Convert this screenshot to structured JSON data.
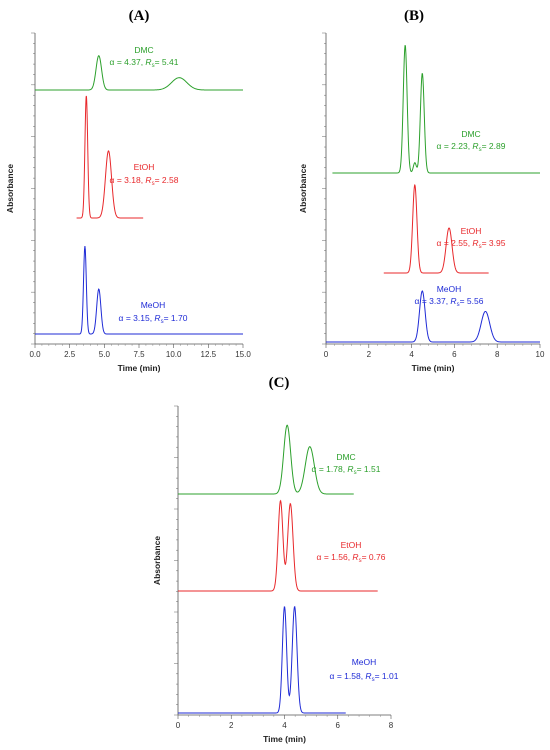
{
  "chart_data": [
    {
      "panel": "(A)",
      "type": "line",
      "xlabel": "Time (min)",
      "ylabel": "Absorbance",
      "xlim": [
        0,
        15
      ],
      "xticks": [
        "0.0",
        "2.5",
        "5.0",
        "7.5",
        "10.0",
        "12.5",
        "15.0"
      ],
      "series": [
        {
          "name": "DMC",
          "annotation": {
            "alpha": "4.37",
            "rs": "5.41"
          },
          "color": "#2ca02c",
          "x_range": [
            0,
            15
          ],
          "peaks": [
            {
              "x": 4.6,
              "height": 0.78,
              "width": 0.2
            },
            {
              "x": 10.4,
              "height": 0.28,
              "width": 0.55
            }
          ]
        },
        {
          "name": "EtOH",
          "annotation": {
            "alpha": "3.18",
            "rs": "2.58"
          },
          "color": "#e8282b",
          "x_range": [
            3.0,
            7.8
          ],
          "peaks": [
            {
              "x": 3.7,
              "height": 1.0,
              "width": 0.1
            },
            {
              "x": 5.3,
              "height": 0.55,
              "width": 0.22
            }
          ]
        },
        {
          "name": "MeOH",
          "annotation": {
            "alpha": "3.15",
            "rs": "1.70"
          },
          "color": "#1f2bd6",
          "x_range": [
            0,
            15
          ],
          "peaks": [
            {
              "x": 3.6,
              "height": 0.88,
              "width": 0.1
            },
            {
              "x": 4.6,
              "height": 0.45,
              "width": 0.15
            }
          ]
        }
      ]
    },
    {
      "panel": "(B)",
      "type": "line",
      "xlabel": "Time (min)",
      "ylabel": "Absorbance",
      "xlim": [
        0,
        10
      ],
      "xticks": [
        "0",
        "2",
        "4",
        "6",
        "8",
        "10"
      ],
      "series": [
        {
          "name": "DMC",
          "annotation": {
            "alpha": "2.23",
            "rs": "2.89"
          },
          "color": "#2ca02c",
          "x_range": [
            0.3,
            10
          ],
          "peaks": [
            {
              "x": 3.7,
              "height": 1.0,
              "width": 0.09
            },
            {
              "x": 4.15,
              "height": 0.08,
              "width": 0.07
            },
            {
              "x": 4.5,
              "height": 0.78,
              "width": 0.09
            }
          ]
        },
        {
          "name": "EtOH",
          "annotation": {
            "alpha": "2.55",
            "rs": "3.95"
          },
          "color": "#e8282b",
          "x_range": [
            2.7,
            7.6
          ],
          "peaks": [
            {
              "x": 4.15,
              "height": 0.88,
              "width": 0.1
            },
            {
              "x": 5.75,
              "height": 0.45,
              "width": 0.14
            }
          ]
        },
        {
          "name": "MeOH",
          "annotation": {
            "alpha": "3.37",
            "rs": "5.56"
          },
          "color": "#1f2bd6",
          "x_range": [
            0,
            10
          ],
          "peaks": [
            {
              "x": 4.5,
              "height": 0.75,
              "width": 0.13
            },
            {
              "x": 7.45,
              "height": 0.45,
              "width": 0.2
            }
          ]
        }
      ]
    },
    {
      "panel": "(C)",
      "type": "line",
      "xlabel": "Time (min)",
      "ylabel": "Absorbance",
      "xlim": [
        0,
        8
      ],
      "xticks": [
        "0",
        "2",
        "4",
        "6",
        "8"
      ],
      "series": [
        {
          "name": "DMC",
          "annotation": {
            "alpha": "1.78",
            "rs": "1.51"
          },
          "color": "#2ca02c",
          "x_range": [
            0,
            6.6
          ],
          "peaks": [
            {
              "x": 4.1,
              "height": 0.8,
              "width": 0.13
            },
            {
              "x": 4.95,
              "height": 0.55,
              "width": 0.17
            }
          ]
        },
        {
          "name": "EtOH",
          "annotation": {
            "alpha": "1.56",
            "rs": "0.76"
          },
          "color": "#e8282b",
          "x_range": [
            0,
            7.5
          ],
          "peaks": [
            {
              "x": 3.85,
              "height": 0.95,
              "width": 0.09
            },
            {
              "x": 4.22,
              "height": 0.92,
              "width": 0.1
            }
          ]
        },
        {
          "name": "MeOH",
          "annotation": {
            "alpha": "1.58",
            "rs": "1.01"
          },
          "color": "#1f2bd6",
          "x_range": [
            0,
            6.3
          ],
          "peaks": [
            {
              "x": 4.0,
              "height": 0.95,
              "width": 0.08
            },
            {
              "x": 4.38,
              "height": 0.95,
              "width": 0.09
            }
          ]
        }
      ]
    }
  ],
  "labels": {
    "alpha_symbol": "α",
    "rs_symbol": "R",
    "rs_sub": "s",
    "equals": " = "
  }
}
